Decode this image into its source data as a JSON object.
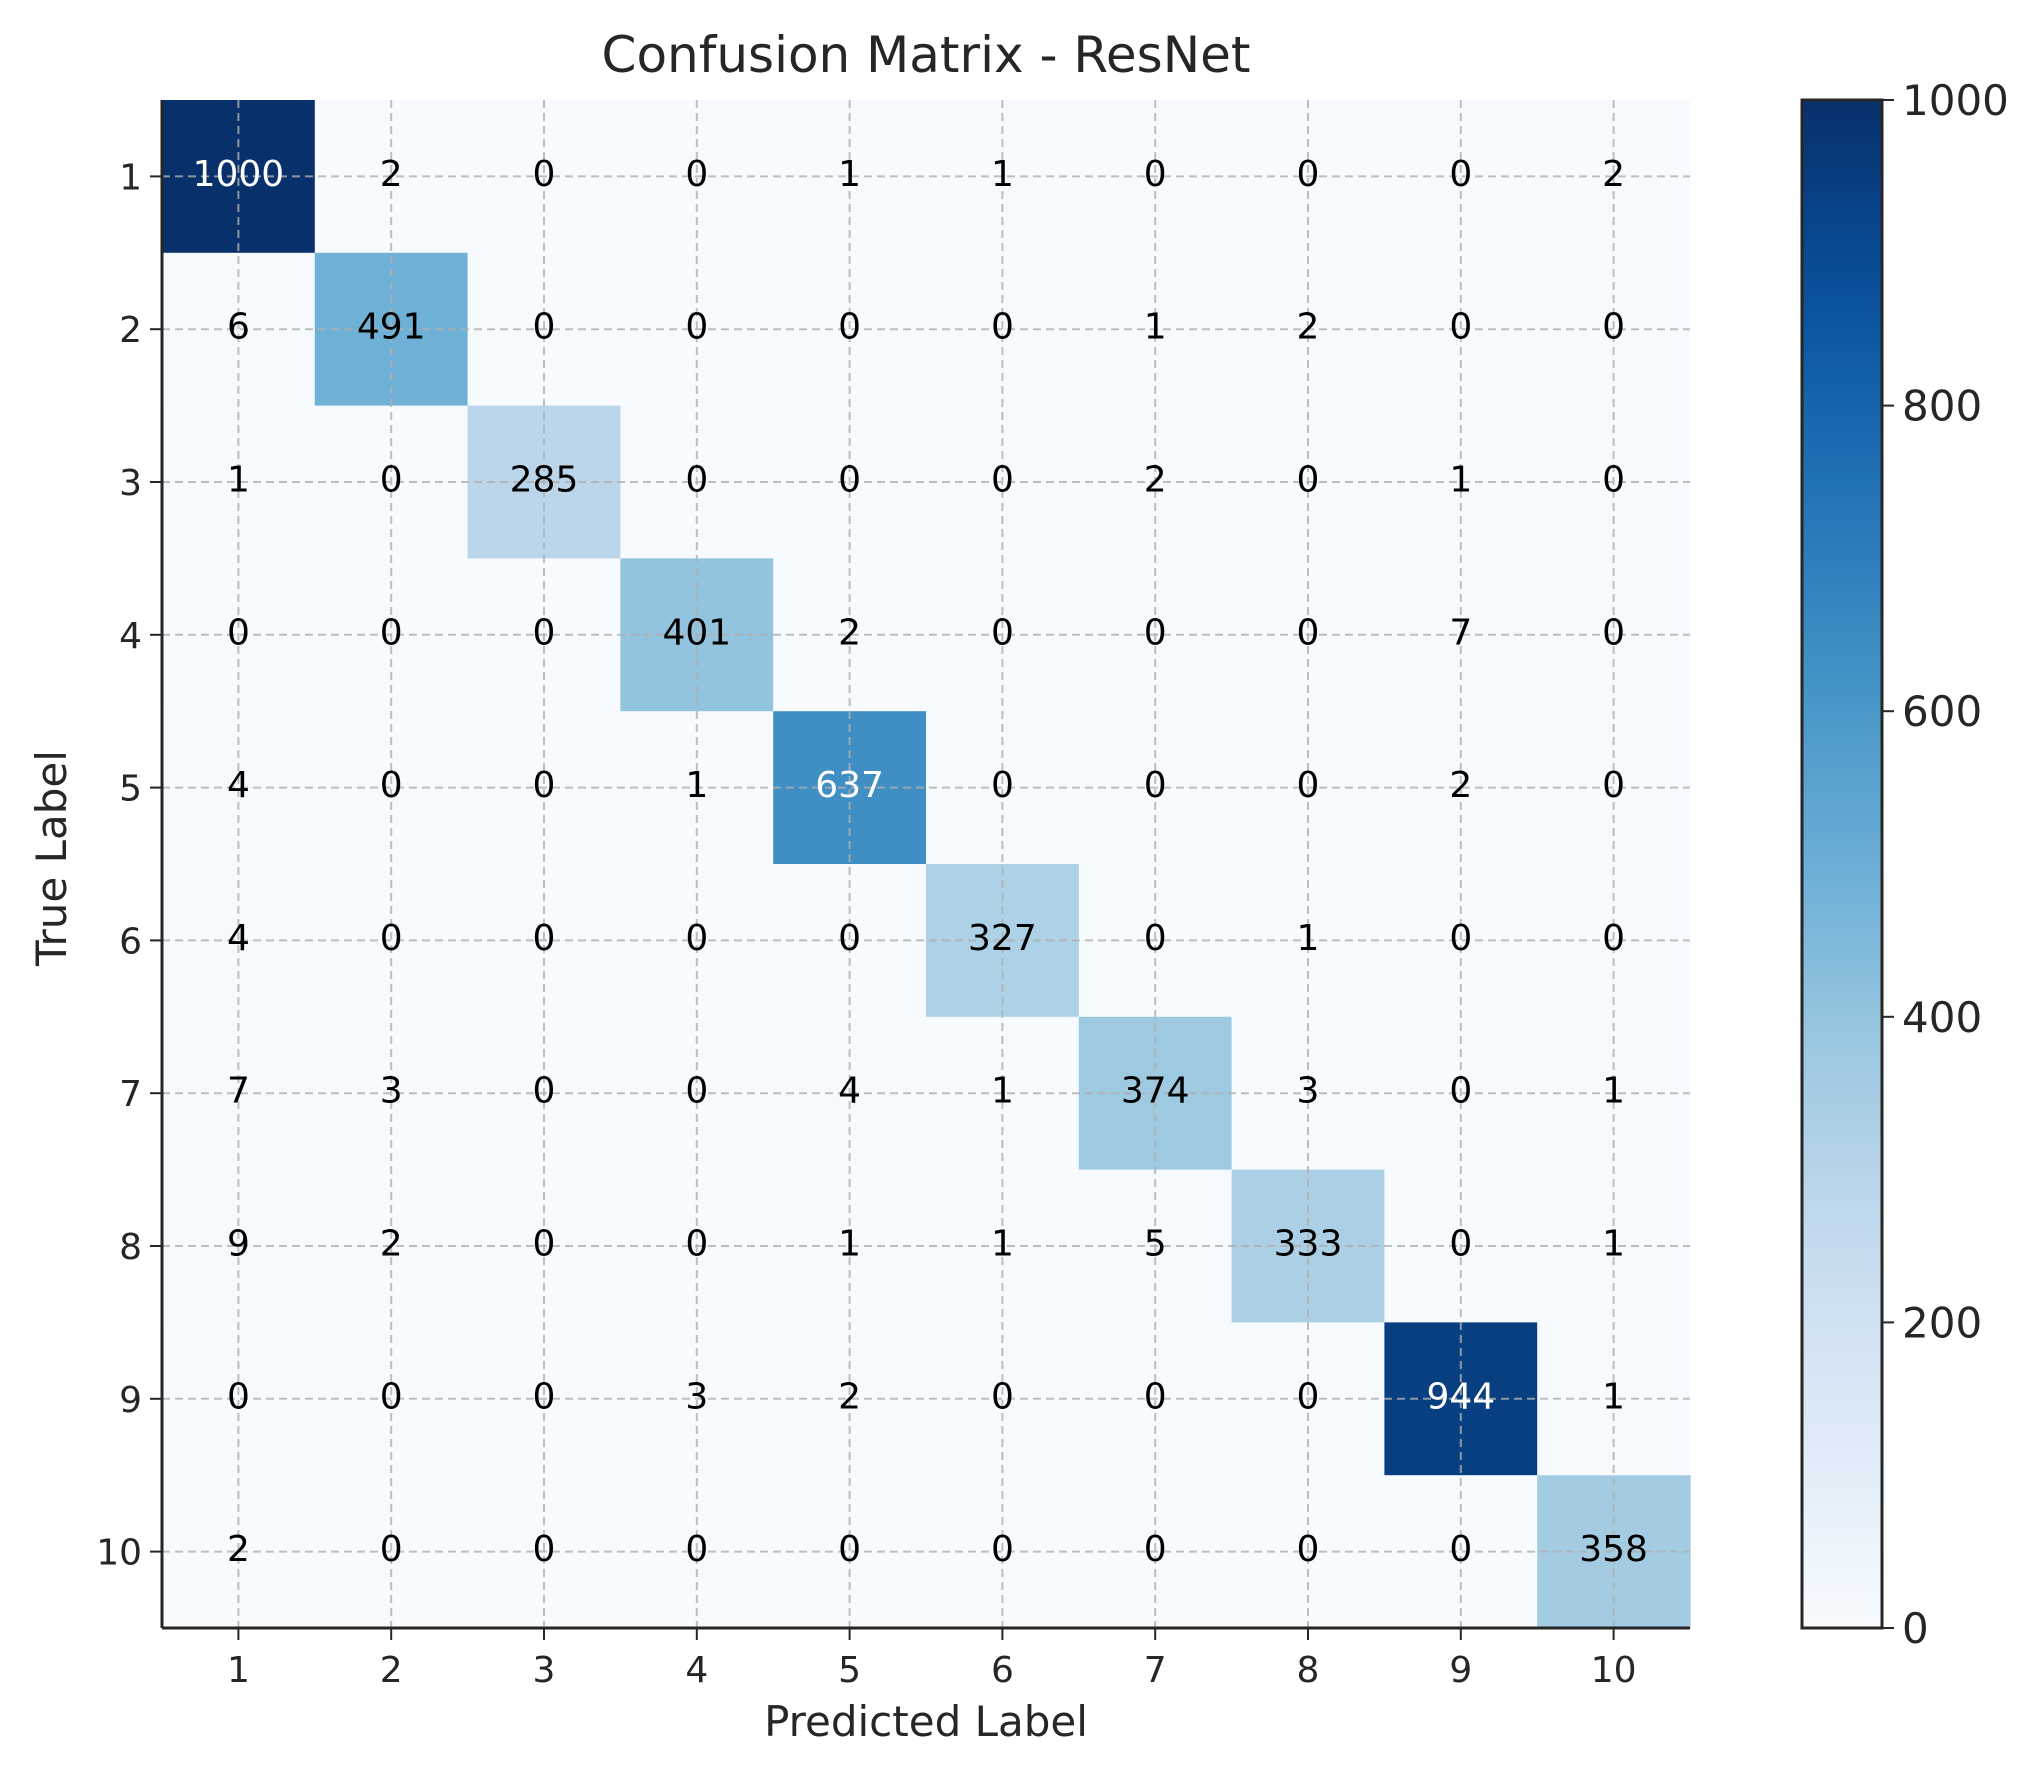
{
  "chart_data": {
    "type": "heatmap",
    "title": "Confusion Matrix - ResNet",
    "xlabel": "Predicted Label",
    "ylabel": "True Label",
    "x_categories": [
      "1",
      "2",
      "3",
      "4",
      "5",
      "6",
      "7",
      "8",
      "9",
      "10"
    ],
    "y_categories": [
      "1",
      "2",
      "3",
      "4",
      "5",
      "6",
      "7",
      "8",
      "9",
      "10"
    ],
    "matrix": [
      [
        1000,
        2,
        0,
        0,
        1,
        1,
        0,
        0,
        0,
        2
      ],
      [
        6,
        491,
        0,
        0,
        0,
        0,
        1,
        2,
        0,
        0
      ],
      [
        1,
        0,
        285,
        0,
        0,
        0,
        2,
        0,
        1,
        0
      ],
      [
        0,
        0,
        0,
        401,
        2,
        0,
        0,
        0,
        7,
        0
      ],
      [
        4,
        0,
        0,
        1,
        637,
        0,
        0,
        0,
        2,
        0
      ],
      [
        4,
        0,
        0,
        0,
        0,
        327,
        0,
        1,
        0,
        0
      ],
      [
        7,
        3,
        0,
        0,
        4,
        1,
        374,
        3,
        0,
        1
      ],
      [
        9,
        2,
        0,
        0,
        1,
        1,
        5,
        333,
        0,
        1
      ],
      [
        0,
        0,
        0,
        3,
        2,
        0,
        0,
        0,
        944,
        1
      ],
      [
        2,
        0,
        0,
        0,
        0,
        0,
        0,
        0,
        0,
        358
      ]
    ],
    "colormap": "Blues",
    "value_range": [
      0,
      1000
    ],
    "colorbar_ticks": [
      0,
      200,
      400,
      600,
      800,
      1000
    ],
    "grid": true
  }
}
